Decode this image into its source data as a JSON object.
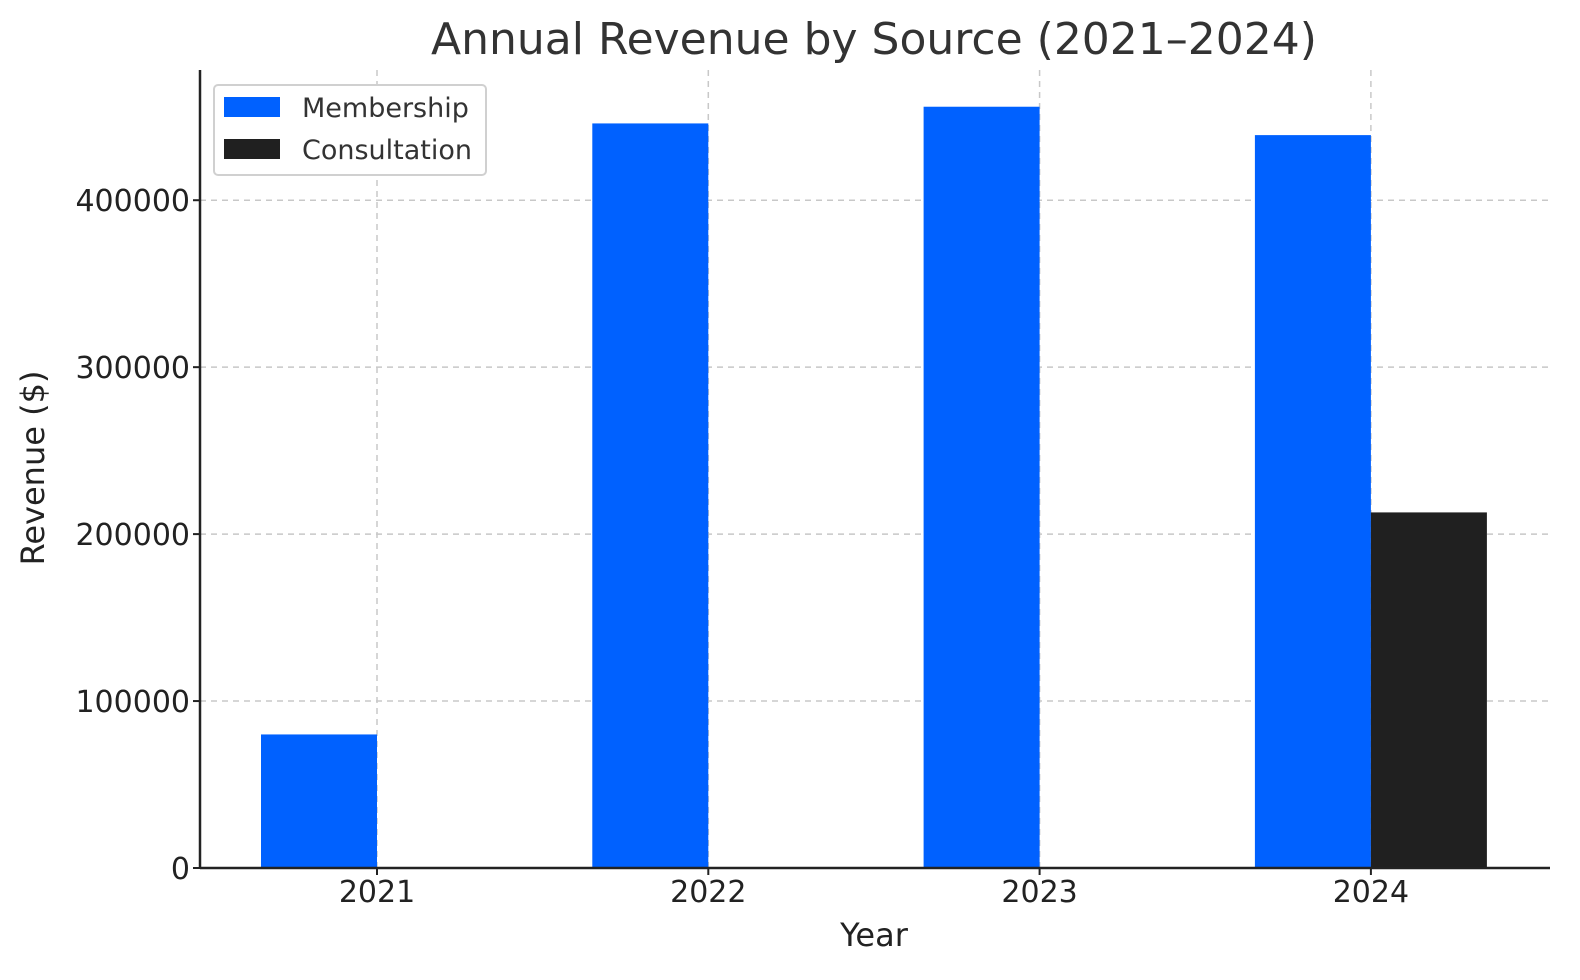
{
  "chart_data": {
    "type": "bar",
    "title": "Annual Revenue by Source (2021–2024)",
    "xlabel": "Year",
    "ylabel": "Revenue ($)",
    "categories": [
      "2021",
      "2022",
      "2023",
      "2024"
    ],
    "series": [
      {
        "name": "Membership",
        "color": "#0061ff",
        "values": [
          80000,
          446000,
          456000,
          439000
        ]
      },
      {
        "name": "Consultation",
        "color": "#202020",
        "values": [
          0,
          0,
          0,
          213000
        ]
      }
    ],
    "ylim": [
      0,
      478000
    ],
    "yticks": [
      0,
      100000,
      200000,
      300000,
      400000
    ],
    "ytick_labels": [
      "0",
      "100000",
      "200000",
      "300000",
      "400000"
    ],
    "grid": true,
    "legend": "top-left"
  }
}
